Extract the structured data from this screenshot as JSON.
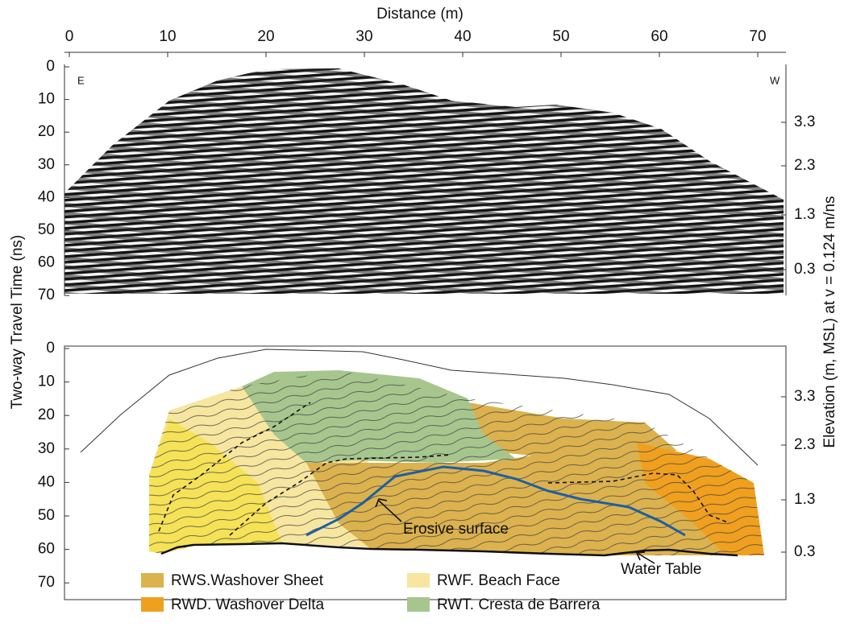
{
  "axes": {
    "top_title": "Distance (m)",
    "x_ticks": [
      0,
      10,
      20,
      30,
      40,
      50,
      60,
      70
    ],
    "left_title": "Two-way Travel Time (ns)",
    "left_ticks_top": [
      0,
      10,
      20,
      30,
      40,
      50,
      60,
      70
    ],
    "left_ticks_bottom": [
      0,
      10,
      20,
      30,
      40,
      50,
      60,
      70
    ],
    "right_title": "Elevation (m, MSL) at v = 0.124 m/ns",
    "right_ticks_top": [
      3.3,
      2.3,
      1.3,
      0.3
    ],
    "right_ticks_bottom": [
      3.3,
      2.3,
      1.3,
      0.3
    ]
  },
  "profile": {
    "east": "E",
    "west": "W"
  },
  "annotations": {
    "erosive": "Erosive surface",
    "water_table": "Water Table"
  },
  "legend": [
    {
      "label": "RWS.Washover Sheet",
      "color": "#dcb24e"
    },
    {
      "label": "RWD. Washover Delta",
      "color": "#f0a01e"
    },
    {
      "label": "RWF. Beach Face",
      "color": "#f7e6a0"
    },
    {
      "label": "RWT. Cresta de Barrera",
      "color": "#a6c68e"
    }
  ]
}
